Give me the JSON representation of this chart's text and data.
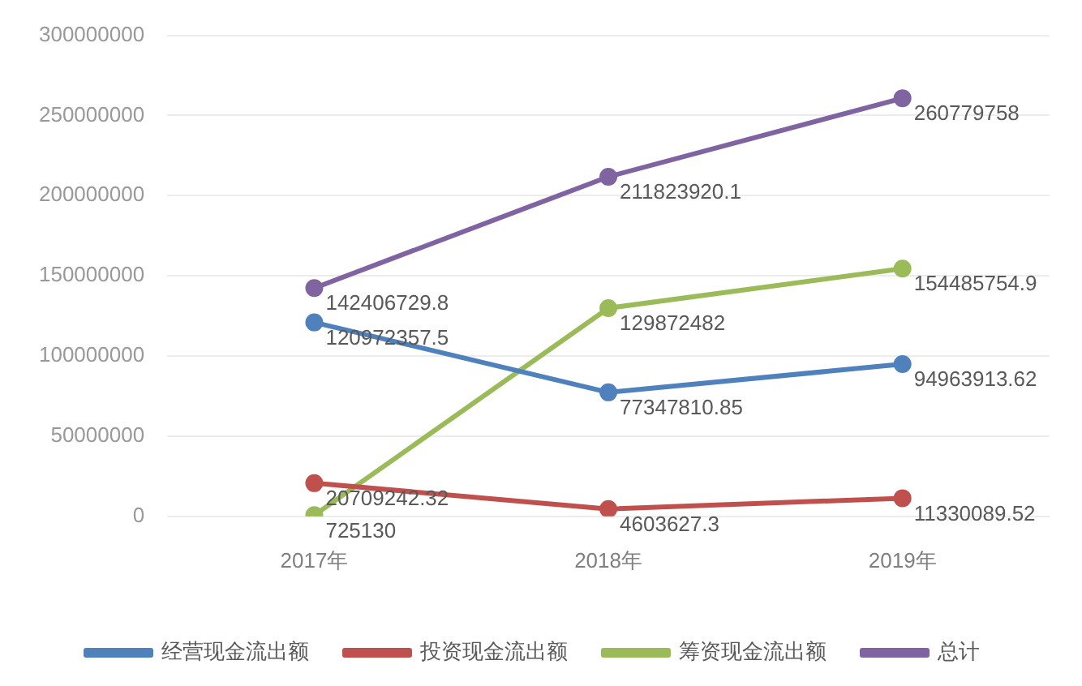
{
  "chart_data": {
    "type": "line",
    "categories": [
      "2017年",
      "2018年",
      "2019年"
    ],
    "series": [
      {
        "name": "经营现金流出额",
        "color": "#4f81bd",
        "values": [
          120972357.5,
          77347810.85,
          94963913.62
        ]
      },
      {
        "name": "投资现金流出额",
        "color": "#c0504d",
        "values": [
          20709242.32,
          4603627.3,
          11330089.52
        ]
      },
      {
        "name": "筹资现金流出额",
        "color": "#9bbb59",
        "values": [
          725130,
          129872482,
          154485754.9
        ]
      },
      {
        "name": "总计",
        "color": "#8064a2",
        "values": [
          142406729.8,
          211823920.1,
          260779758
        ]
      }
    ],
    "ylim": [
      0,
      300000000
    ],
    "yticks": [
      0,
      50000000,
      100000000,
      150000000,
      200000000,
      250000000,
      300000000
    ],
    "grid": "y",
    "legend": "bottom",
    "marker": "circle",
    "line_style": "solid",
    "data_labels": true
  }
}
